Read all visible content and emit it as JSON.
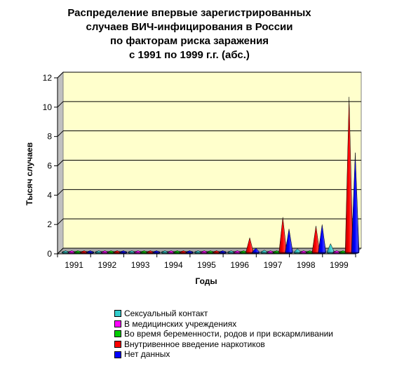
{
  "chart_data": {
    "type": "3d-cone",
    "title_lines": [
      "Распределение впервые зарегистрированных",
      "случаев ВИЧ-инфицирования в России",
      "по факторам риска заражения",
      "с 1991 по 1999 г.г. (абс.)"
    ],
    "xlabel": "Годы",
    "ylabel": "Тысяч случаев",
    "ylim": [
      0,
      12
    ],
    "yticks": [
      "0",
      "2",
      "4",
      "6",
      "8",
      "10",
      "12"
    ],
    "categories": [
      "1991",
      "1992",
      "1993",
      "1994",
      "1995",
      "1996",
      "1997",
      "1998",
      "1999"
    ],
    "grid": true,
    "legend_position": "bottom",
    "series": [
      {
        "name": "Сексуальный контакт",
        "color": "#33CCCC",
        "values": [
          0.05,
          0.07,
          0.08,
          0.09,
          0.1,
          0.1,
          0.16,
          0.25,
          0.6
        ]
      },
      {
        "name": "В медицинских учреждениях",
        "color": "#FF00FF",
        "values": [
          0.0,
          0.0,
          0.0,
          0.0,
          0.0,
          0.01,
          0.01,
          0.01,
          0.02
        ]
      },
      {
        "name": "Во время беременности, родов и при вскармливании",
        "color": "#00CC00",
        "values": [
          0.0,
          0.0,
          0.0,
          0.0,
          0.0,
          0.01,
          0.01,
          0.02,
          0.03
        ]
      },
      {
        "name": "Внутривенное введение наркотиков",
        "color": "#FF0000",
        "values": [
          0.0,
          0.0,
          0.0,
          0.0,
          0.0,
          1.0,
          2.4,
          1.8,
          10.6
        ]
      },
      {
        "name": "Нет данных",
        "color": "#0000FF",
        "values": [
          0.0,
          0.0,
          0.0,
          0.01,
          0.02,
          0.3,
          1.6,
          1.9,
          6.8
        ]
      }
    ]
  }
}
